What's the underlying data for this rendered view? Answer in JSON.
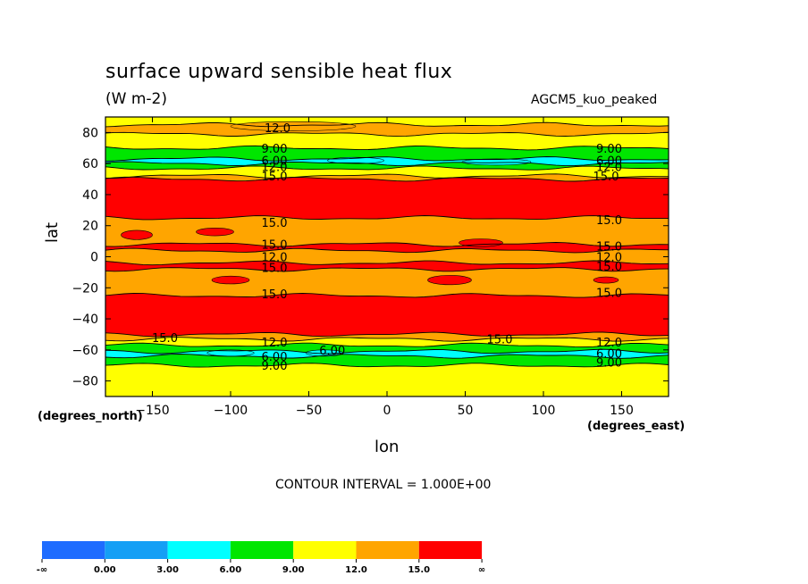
{
  "header": {
    "title": "surface upward sensible heat flux",
    "units": "(W m-2)",
    "model": "AGCM5_kuo_peaked"
  },
  "axes": {
    "xlabel": "lon",
    "ylabel": "lat",
    "y_note": "(degrees_north)",
    "x_note": "(degrees_east)"
  },
  "contour_interval": "CONTOUR INTERVAL = 1.000E+00",
  "chart_data": {
    "type": "heatmap",
    "title": "surface upward sensible heat flux",
    "units": "W m-2",
    "xlabel": "lon",
    "ylabel": "lat",
    "xlim": [
      -180,
      180
    ],
    "ylim": [
      -90,
      90
    ],
    "x_ticks": [
      -150,
      -100,
      -50,
      0,
      50,
      100,
      150
    ],
    "x_tick_labels": [
      "−150",
      "−100",
      "−50",
      "0",
      "50",
      "100",
      "150"
    ],
    "y_ticks": [
      80,
      60,
      40,
      20,
      0,
      -20,
      -40,
      -60,
      -80
    ],
    "y_tick_labels": [
      "80",
      "60",
      "40",
      "20",
      "0",
      "−20",
      "−40",
      "−60",
      "−80"
    ],
    "grid": false,
    "color_scale": {
      "boundaries": [
        "-∞",
        "0.00",
        "3.00",
        "6.00",
        "9.00",
        "12.0",
        "15.0",
        "∞"
      ],
      "colors": [
        "#1e6cff",
        "#159ff5",
        "#00ffff",
        "#00e600",
        "#ffff00",
        "#ffa500",
        "#ff0000"
      ],
      "placement": "bottom-left"
    },
    "zonal_bands": [
      {
        "lat_from": 90,
        "lat_to": 85,
        "level": 4
      },
      {
        "lat_from": 85,
        "lat_to": 79,
        "level": 5
      },
      {
        "lat_from": 79,
        "lat_to": 70,
        "level": 4
      },
      {
        "lat_from": 70,
        "lat_to": 63,
        "level": 3
      },
      {
        "lat_from": 63,
        "lat_to": 60,
        "level": 2
      },
      {
        "lat_from": 60,
        "lat_to": 57,
        "level": 3
      },
      {
        "lat_from": 57,
        "lat_to": 52,
        "level": 4
      },
      {
        "lat_from": 52,
        "lat_to": 50,
        "level": 5
      },
      {
        "lat_from": 50,
        "lat_to": 25,
        "level": 6
      },
      {
        "lat_from": 25,
        "lat_to": 8,
        "level": 5
      },
      {
        "lat_from": 8,
        "lat_to": 4,
        "level": 6
      },
      {
        "lat_from": 4,
        "lat_to": -4,
        "level": 5
      },
      {
        "lat_from": -4,
        "lat_to": -8,
        "level": 6
      },
      {
        "lat_from": -8,
        "lat_to": -25,
        "level": 5
      },
      {
        "lat_from": -25,
        "lat_to": -50,
        "level": 6
      },
      {
        "lat_from": -50,
        "lat_to": -53,
        "level": 5
      },
      {
        "lat_from": -53,
        "lat_to": -57,
        "level": 4
      },
      {
        "lat_from": -57,
        "lat_to": -61,
        "level": 3
      },
      {
        "lat_from": -61,
        "lat_to": -64,
        "level": 2
      },
      {
        "lat_from": -64,
        "lat_to": -70,
        "level": 3
      },
      {
        "lat_from": -70,
        "lat_to": -90,
        "level": 4
      }
    ],
    "contour_labels": [
      {
        "text": "12.0",
        "lon": -70,
        "lat": 83
      },
      {
        "text": "9.00",
        "lon": -72,
        "lat": 70
      },
      {
        "text": "9.00",
        "lon": 142,
        "lat": 70
      },
      {
        "text": "6.00",
        "lon": -72,
        "lat": 62
      },
      {
        "text": "6.00",
        "lon": 142,
        "lat": 62
      },
      {
        "text": "12.0",
        "lon": -72,
        "lat": 58
      },
      {
        "text": "12.0",
        "lon": 142,
        "lat": 58
      },
      {
        "text": "15.0",
        "lon": -72,
        "lat": 52
      },
      {
        "text": "15.0",
        "lon": 140,
        "lat": 52
      },
      {
        "text": "15.0",
        "lon": -72,
        "lat": 22
      },
      {
        "text": "15.0",
        "lon": 142,
        "lat": 24
      },
      {
        "text": "15.0",
        "lon": -72,
        "lat": 8
      },
      {
        "text": "15.0",
        "lon": 142,
        "lat": 7
      },
      {
        "text": "12.0",
        "lon": -72,
        "lat": 0
      },
      {
        "text": "12.0",
        "lon": 142,
        "lat": 0
      },
      {
        "text": "15.0",
        "lon": -72,
        "lat": -7
      },
      {
        "text": "15.0",
        "lon": 142,
        "lat": -6
      },
      {
        "text": "15.0",
        "lon": -72,
        "lat": -24
      },
      {
        "text": "15.0",
        "lon": 142,
        "lat": -23
      },
      {
        "text": "15.0",
        "lon": -142,
        "lat": -52
      },
      {
        "text": "15.0",
        "lon": 72,
        "lat": -53
      },
      {
        "text": "12.0",
        "lon": -72,
        "lat": -55
      },
      {
        "text": "12.0",
        "lon": 142,
        "lat": -55
      },
      {
        "text": "6.00",
        "lon": -35,
        "lat": -60
      },
      {
        "text": "6.00",
        "lon": -72,
        "lat": -64
      },
      {
        "text": "6.00",
        "lon": 142,
        "lat": -62
      },
      {
        "text": "9.00",
        "lon": -72,
        "lat": -70
      },
      {
        "text": "9.00",
        "lon": 142,
        "lat": -68
      }
    ]
  }
}
